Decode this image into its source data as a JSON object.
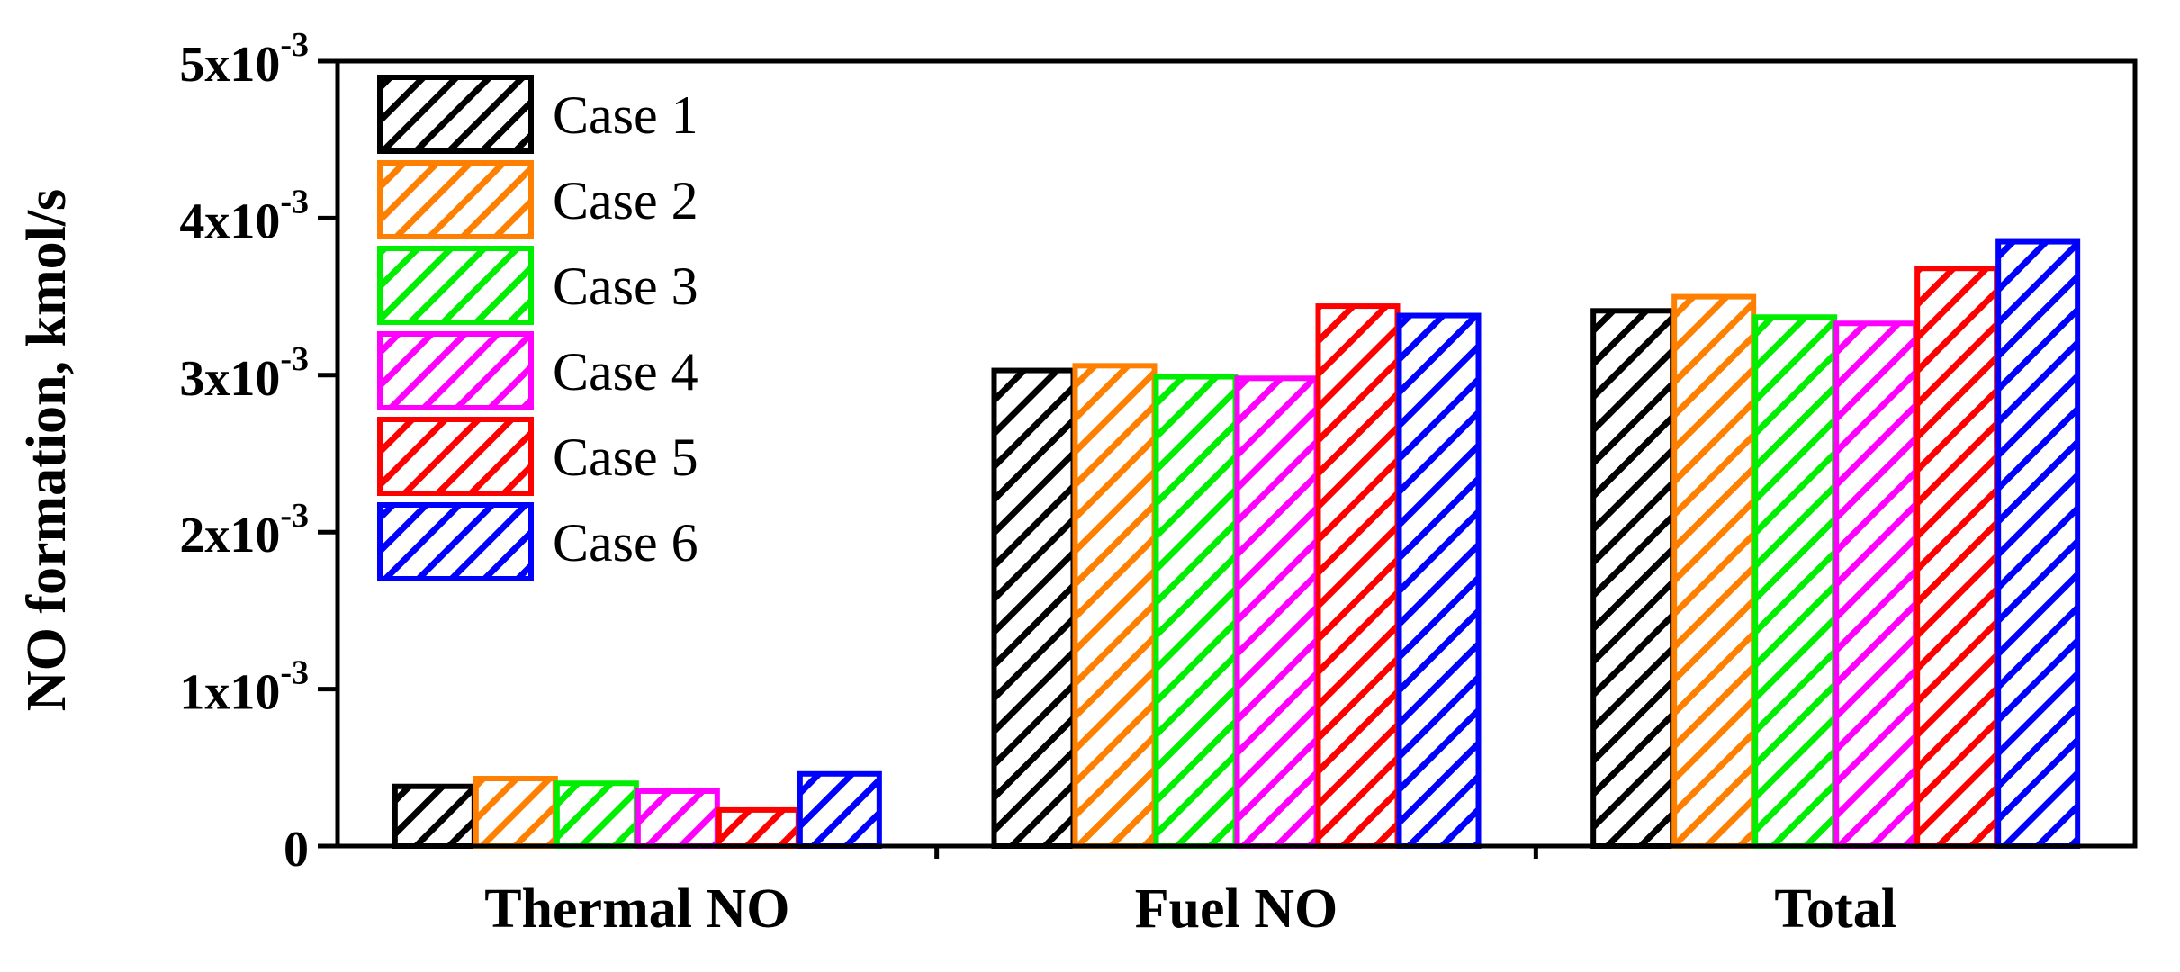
{
  "chart_data": {
    "type": "bar",
    "title": "",
    "xlabel": "",
    "ylabel": "NO formation, kmol/s",
    "ylim": [
      0,
      0.005
    ],
    "y_ticks": [
      {
        "value": 0,
        "base": "0",
        "exp": ""
      },
      {
        "value": 0.001,
        "base": "1x10",
        "exp": "-3"
      },
      {
        "value": 0.002,
        "base": "2x10",
        "exp": "-3"
      },
      {
        "value": 0.003,
        "base": "3x10",
        "exp": "-3"
      },
      {
        "value": 0.004,
        "base": "4x10",
        "exp": "-3"
      },
      {
        "value": 0.005,
        "base": "5x10",
        "exp": "-3"
      }
    ],
    "categories": [
      "Thermal NO",
      "Fuel NO",
      "Total"
    ],
    "legend_position": "top-left",
    "grid": false,
    "series": [
      {
        "name": "Case 1",
        "color": "#000000",
        "values": [
          0.00038,
          0.00303,
          0.00341
        ]
      },
      {
        "name": "Case 2",
        "color": "#FF8000",
        "values": [
          0.00043,
          0.00306,
          0.0035
        ]
      },
      {
        "name": "Case 3",
        "color": "#00EE00",
        "values": [
          0.0004,
          0.00299,
          0.00337
        ]
      },
      {
        "name": "Case 4",
        "color": "#FF00FF",
        "values": [
          0.00035,
          0.00298,
          0.00333
        ]
      },
      {
        "name": "Case 5",
        "color": "#FF0000",
        "values": [
          0.00023,
          0.00344,
          0.00368
        ]
      },
      {
        "name": "Case 6",
        "color": "#0000FF",
        "values": [
          0.00046,
          0.00338,
          0.00385
        ]
      }
    ]
  }
}
